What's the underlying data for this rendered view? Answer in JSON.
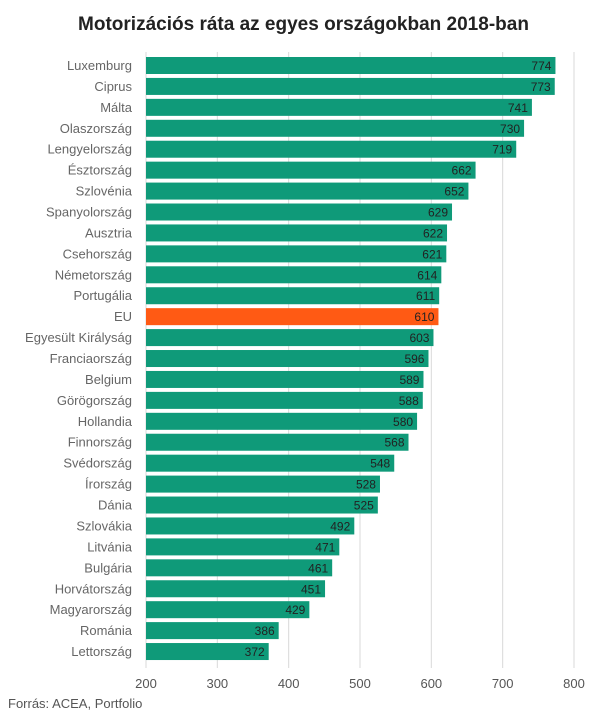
{
  "title": "Motorizációs ráta az egyes országokban 2018-ban",
  "source": "Forrás: ACEA, Portfolio",
  "colors": {
    "bar": "#0f9a79",
    "highlight": "#ff5a14",
    "grid": "#d9d9d9",
    "text": "#222222"
  },
  "chart_data": {
    "type": "bar",
    "orientation": "horizontal",
    "title": "Motorizációs ráta az egyes országokban 2018-ban",
    "xlim": [
      200,
      800
    ],
    "xticks": [
      200,
      300,
      400,
      500,
      600,
      700,
      800
    ],
    "grid": true,
    "highlight": "EU",
    "categories": [
      "Luxemburg",
      "Ciprus",
      "Málta",
      "Olaszország",
      "Lengyelország",
      "Észtország",
      "Szlovénia",
      "Spanyolország",
      "Ausztria",
      "Csehország",
      "Németország",
      "Portugália",
      "EU",
      "Egyesült Királyság",
      "Franciaország",
      "Belgium",
      "Görögország",
      "Hollandia",
      "Finnország",
      "Svédország",
      "Írország",
      "Dánia",
      "Szlovákia",
      "Litvánia",
      "Bulgária",
      "Horvátország",
      "Magyarország",
      "Románia",
      "Lettország"
    ],
    "values": [
      774,
      773,
      741,
      730,
      719,
      662,
      652,
      629,
      622,
      621,
      614,
      611,
      610,
      603,
      596,
      589,
      588,
      580,
      568,
      548,
      528,
      525,
      492,
      471,
      461,
      451,
      429,
      386,
      372
    ]
  }
}
